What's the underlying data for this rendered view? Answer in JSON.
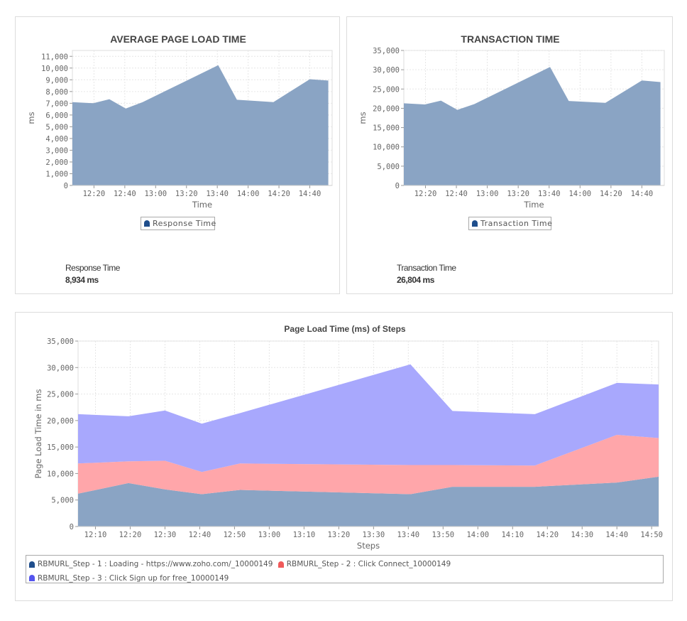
{
  "colors": {
    "series_primary": "#8aa4c4",
    "step1": "#8aa4c4",
    "step2": "#ffa6aa",
    "step3": "#a8a8fd",
    "legend_step1": "#1f4e8c",
    "legend_step2": "#f05a5a",
    "legend_step3": "#5555ee",
    "grid": "#e6e6e6"
  },
  "panels": {
    "avg_page_load": {
      "legend_label": "Response Time",
      "summary_label": "Response Time",
      "summary_value": "8,934 ms"
    },
    "transaction_time": {
      "legend_label": "Transaction Time",
      "summary_label": "Transaction Time",
      "summary_value": "26,804 ms"
    },
    "steps": {
      "legend": [
        {
          "label": "RBMURL_Step - 1 : Loading - https://www.zoho.com/_10000149",
          "color_key": "legend_step1"
        },
        {
          "label": "RBMURL_Step - 2 : Click Connect_10000149",
          "color_key": "legend_step2"
        },
        {
          "label": "RBMURL_Step - 3 : Click Sign up for free_10000149",
          "color_key": "legend_step3"
        }
      ]
    }
  },
  "chart_data": [
    {
      "id": "avg",
      "type": "area",
      "title": "AVERAGE PAGE LOAD TIME",
      "xlabel": "Time",
      "ylabel": "ms",
      "x_unit": "minutes since 12:00",
      "xlim": [
        6,
        55
      ],
      "ylim": [
        0,
        11500
      ],
      "yticks": [
        0,
        1000,
        2000,
        3000,
        4000,
        5000,
        6000,
        7000,
        8000,
        9000,
        10000,
        11000
      ],
      "ytick_labels": [
        "0",
        "1,000",
        "2,000",
        "3,000",
        "4,000",
        "5,000",
        "6,000",
        "7,000",
        "8,000",
        "9,000",
        "10,000",
        "11,000"
      ],
      "xticks": [
        20,
        40,
        60,
        80,
        100,
        120,
        140,
        160
      ],
      "xtick_labels": [
        "12:20",
        "12:40",
        "13:00",
        "13:20",
        "13:40",
        "14:00",
        "14:20",
        "14:40"
      ],
      "grid": true,
      "legend_position": "bottom-center",
      "series": [
        {
          "name": "Response Time",
          "x": [
            6,
            19.6,
            30,
            40.6,
            51.6,
            100.6,
            112.7,
            136.4,
            160,
            172
          ],
          "values": [
            7100,
            7000,
            7350,
            6550,
            7100,
            10250,
            7300,
            7100,
            9050,
            8934
          ]
        }
      ]
    },
    {
      "id": "txn",
      "type": "area",
      "title": "TRANSACTION TIME",
      "xlabel": "Time",
      "ylabel": "ms",
      "x_unit": "minutes since 12:00",
      "ylim": [
        0,
        35000
      ],
      "yticks": [
        0,
        5000,
        10000,
        15000,
        20000,
        25000,
        30000,
        35000
      ],
      "ytick_labels": [
        "0",
        "5,000",
        "10,000",
        "15,000",
        "20,000",
        "25,000",
        "30,000",
        "35,000"
      ],
      "xticks": [
        20,
        40,
        60,
        80,
        100,
        120,
        140,
        160
      ],
      "xtick_labels": [
        "12:20",
        "12:40",
        "13:00",
        "13:20",
        "13:40",
        "14:00",
        "14:20",
        "14:40"
      ],
      "grid": true,
      "legend_position": "bottom-center",
      "series": [
        {
          "name": "Transaction Time",
          "x": [
            6,
            19.6,
            30,
            40.6,
            51.6,
            100.6,
            112.7,
            136.4,
            160,
            172
          ],
          "values": [
            21300,
            21000,
            22000,
            19600,
            21100,
            30700,
            21900,
            21400,
            27200,
            26804
          ]
        }
      ]
    },
    {
      "id": "steps",
      "type": "area",
      "stacked": true,
      "title": "Page Load Time (ms) of Steps",
      "xlabel": "Steps",
      "ylabel": "Page Load Time in ms",
      "x_unit": "minutes since 12:00",
      "ylim": [
        0,
        35000
      ],
      "yticks": [
        0,
        5000,
        10000,
        15000,
        20000,
        25000,
        30000,
        35000
      ],
      "ytick_labels": [
        "0",
        "5,000",
        "10,000",
        "15,000",
        "20,000",
        "25,000",
        "30,000",
        "35,000"
      ],
      "xticks": [
        10,
        20,
        30,
        40,
        50,
        60,
        70,
        80,
        90,
        100,
        110,
        120,
        130,
        140,
        150,
        160,
        170
      ],
      "xtick_labels": [
        "12:10",
        "12:20",
        "12:30",
        "12:40",
        "12:50",
        "13:00",
        "13:10",
        "13:20",
        "13:30",
        "13:40",
        "13:50",
        "14:00",
        "14:10",
        "14:20",
        "14:30",
        "14:40",
        "14:50"
      ],
      "grid": true,
      "legend_position": "bottom",
      "x": [
        5,
        19.5,
        30,
        40.6,
        51.6,
        100.6,
        112.7,
        136.4,
        160,
        172
      ],
      "series": [
        {
          "name": "RBMURL_Step - 1 : Loading - https://www.zoho.com/_10000149",
          "values": [
            6200,
            8200,
            7000,
            6100,
            6900,
            6100,
            7500,
            7500,
            8300,
            9400
          ]
        },
        {
          "name": "RBMURL_Step - 2 : Click Connect_10000149",
          "values": [
            5700,
            4100,
            5400,
            4200,
            5000,
            5500,
            4100,
            4000,
            9000,
            7300
          ]
        },
        {
          "name": "RBMURL_Step - 3 : Click Sign up for free_10000149",
          "values": [
            9300,
            8500,
            9500,
            9100,
            9500,
            19000,
            10200,
            9700,
            9800,
            10100
          ]
        }
      ]
    }
  ]
}
